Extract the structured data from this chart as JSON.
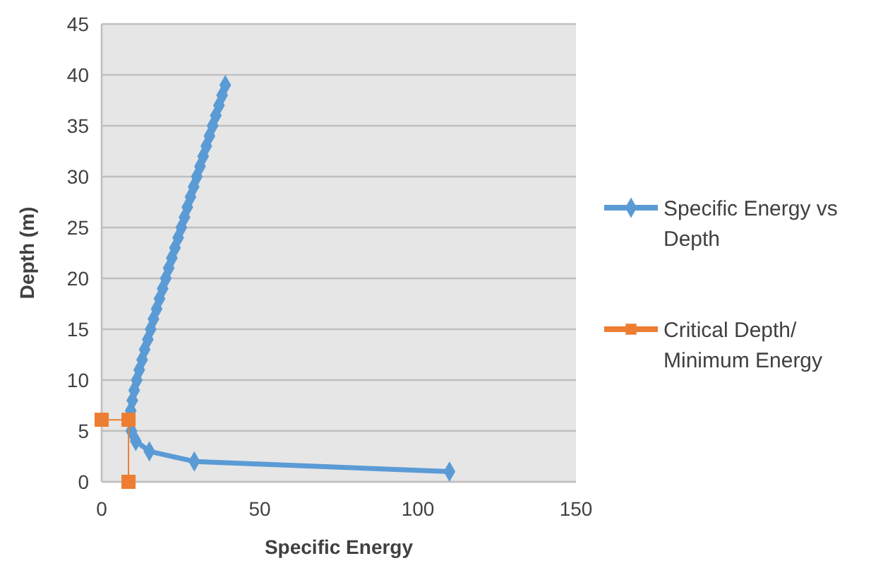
{
  "chart_data": {
    "type": "line",
    "xlabel": "Specific Energy",
    "ylabel": "Depth (m)",
    "xlim": [
      0,
      150
    ],
    "xticks": [
      0,
      50,
      100,
      150
    ],
    "ylim": [
      0,
      45
    ],
    "yticks": [
      0,
      5,
      10,
      15,
      20,
      25,
      30,
      35,
      40,
      45
    ],
    "grid": "y",
    "legend": "right",
    "marker": "diamond",
    "series": [
      {
        "name": "Specific Energy vs Depth",
        "color": "#5b9bd5",
        "marker": "diamond",
        "x": [
          110,
          29.3,
          15.1,
          10.8,
          9.4,
          9.0,
          9.2,
          9.7,
          10.3,
          11.1,
          11.9,
          12.8,
          13.6,
          14.6,
          15.5,
          16.4,
          17.4,
          18.3,
          19.3,
          20.3,
          21.2,
          22.2,
          23.2,
          24.2,
          25.2,
          26.2,
          27.1,
          28.1,
          29.1,
          30.1,
          31.1,
          32.1,
          33.1,
          34.1,
          35.1,
          36.1,
          37.1,
          38.1,
          39.1
        ],
        "values": [
          1,
          2,
          3,
          4,
          5,
          6,
          7,
          8,
          9,
          10,
          11,
          12,
          13,
          14,
          15,
          16,
          17,
          18,
          19,
          20,
          21,
          22,
          23,
          24,
          25,
          26,
          27,
          28,
          29,
          30,
          31,
          32,
          33,
          34,
          35,
          36,
          37,
          38,
          39
        ]
      },
      {
        "name": "Critical Depth/ Minimum Energy",
        "color": "#ed7d31",
        "marker": "square",
        "x": [
          0,
          8.5,
          8.5
        ],
        "values": [
          6.1,
          6.1,
          0
        ]
      }
    ]
  }
}
